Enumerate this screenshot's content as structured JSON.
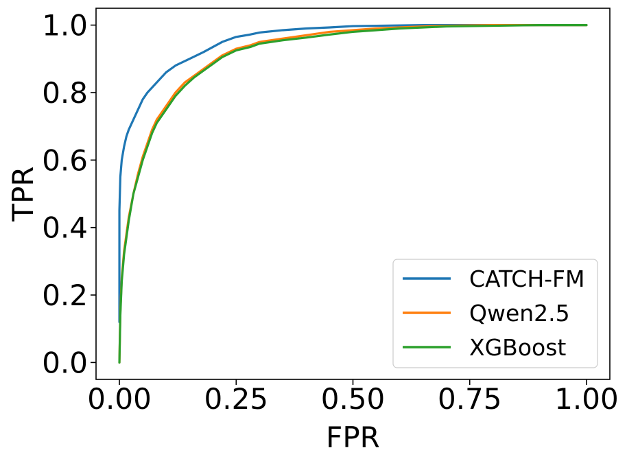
{
  "chart_data": {
    "type": "line",
    "title": "",
    "xlabel": "FPR",
    "ylabel": "TPR",
    "xlim": [
      -0.05,
      1.05
    ],
    "ylim": [
      -0.05,
      1.05
    ],
    "xticks": [
      0.0,
      0.25,
      0.5,
      0.75,
      1.0
    ],
    "xtick_labels": [
      "0.00",
      "0.25",
      "0.50",
      "0.75",
      "1.00"
    ],
    "yticks": [
      0.0,
      0.2,
      0.4,
      0.6,
      0.8,
      1.0
    ],
    "ytick_labels": [
      "0.0",
      "0.2",
      "0.4",
      "0.6",
      "0.8",
      "1.0"
    ],
    "grid": false,
    "legend_position": "lower-right",
    "series": [
      {
        "name": "CATCH-FM",
        "color": "#1f77b4",
        "x": [
          0.0,
          0.0,
          0.002,
          0.005,
          0.01,
          0.015,
          0.02,
          0.03,
          0.04,
          0.05,
          0.06,
          0.08,
          0.1,
          0.12,
          0.15,
          0.18,
          0.2,
          0.22,
          0.25,
          0.28,
          0.3,
          0.35,
          0.4,
          0.45,
          0.5,
          0.55,
          0.6,
          0.65,
          0.7,
          0.8,
          0.9,
          1.0
        ],
        "y": [
          0.12,
          0.45,
          0.55,
          0.6,
          0.64,
          0.67,
          0.69,
          0.72,
          0.75,
          0.78,
          0.8,
          0.83,
          0.86,
          0.88,
          0.9,
          0.92,
          0.935,
          0.95,
          0.965,
          0.972,
          0.978,
          0.985,
          0.99,
          0.993,
          0.997,
          0.998,
          0.999,
          1.0,
          1.0,
          1.0,
          1.0,
          1.0
        ]
      },
      {
        "name": "Qwen2.5",
        "color": "#ff7f0e",
        "x": [
          0.0,
          0.002,
          0.005,
          0.01,
          0.015,
          0.02,
          0.03,
          0.04,
          0.05,
          0.06,
          0.07,
          0.08,
          0.1,
          0.12,
          0.14,
          0.16,
          0.18,
          0.2,
          0.22,
          0.25,
          0.28,
          0.3,
          0.35,
          0.4,
          0.45,
          0.5,
          0.55,
          0.6,
          0.65,
          0.7,
          0.8,
          0.9,
          1.0
        ],
        "y": [
          0.0,
          0.15,
          0.25,
          0.33,
          0.38,
          0.43,
          0.5,
          0.56,
          0.61,
          0.65,
          0.69,
          0.72,
          0.76,
          0.8,
          0.83,
          0.85,
          0.87,
          0.89,
          0.91,
          0.93,
          0.94,
          0.95,
          0.96,
          0.97,
          0.98,
          0.985,
          0.99,
          0.993,
          0.996,
          0.998,
          1.0,
          1.0,
          1.0
        ]
      },
      {
        "name": "XGBoost",
        "color": "#2ca02c",
        "x": [
          0.0,
          0.002,
          0.005,
          0.01,
          0.015,
          0.02,
          0.03,
          0.04,
          0.05,
          0.06,
          0.07,
          0.08,
          0.1,
          0.12,
          0.14,
          0.16,
          0.18,
          0.2,
          0.22,
          0.25,
          0.28,
          0.3,
          0.35,
          0.4,
          0.45,
          0.5,
          0.55,
          0.6,
          0.65,
          0.7,
          0.8,
          0.9,
          1.0
        ],
        "y": [
          0.0,
          0.14,
          0.24,
          0.32,
          0.37,
          0.42,
          0.5,
          0.55,
          0.6,
          0.64,
          0.68,
          0.71,
          0.75,
          0.79,
          0.82,
          0.845,
          0.865,
          0.885,
          0.905,
          0.925,
          0.935,
          0.945,
          0.955,
          0.963,
          0.972,
          0.98,
          0.985,
          0.99,
          0.993,
          0.996,
          0.998,
          1.0,
          1.0
        ]
      }
    ]
  }
}
